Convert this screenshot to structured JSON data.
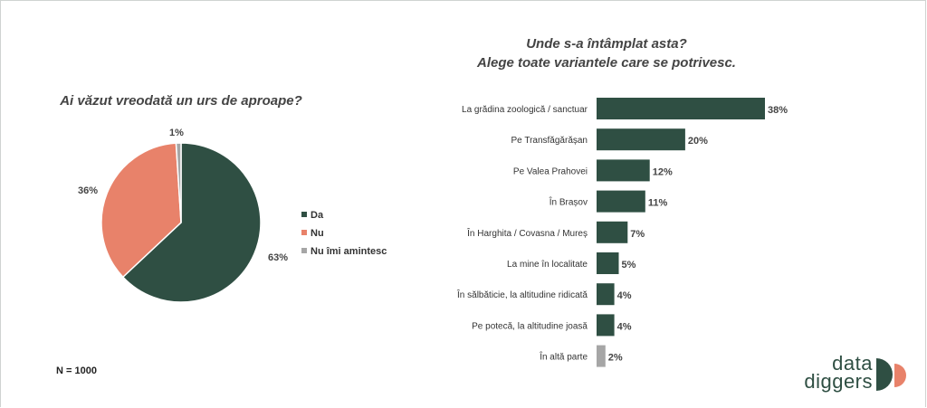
{
  "left_panel": {
    "title": "Ai văzut vreodată un urs de aproape?",
    "sample_size": "N = 1000"
  },
  "right_panel": {
    "title_line1": "Unde s-a întâmplat asta?",
    "title_line2": "Alege toate variantele care se potrivesc."
  },
  "logo": {
    "line1": "data",
    "line2": "diggers"
  },
  "colors": {
    "dark_green": "#2f4f43",
    "salmon": "#e8826a",
    "gray": "#a6a6a6",
    "logo_orange": "#e8826a"
  },
  "chart_data": [
    {
      "type": "pie",
      "title": "Ai văzut vreodată un urs de aproape?",
      "slices": [
        {
          "label": "Da",
          "value": 63,
          "value_label": "63%",
          "color": "#2f4f43"
        },
        {
          "label": "Nu",
          "value": 36,
          "value_label": "36%",
          "color": "#e8826a"
        },
        {
          "label": "Nu îmi amintesc",
          "value": 1,
          "value_label": "1%",
          "color": "#a6a6a6"
        }
      ],
      "legend_position": "right"
    },
    {
      "type": "bar",
      "orientation": "horizontal",
      "title": "Unde s-a întâmplat asta? Alege toate variantele care se potrivesc.",
      "categories": [
        "La grădina zoologică / sanctuar",
        "Pe Transfăgărășan",
        "Pe Valea Prahovei",
        "În Brașov",
        "În Harghita / Covasna / Mureș",
        "La mine în localitate",
        "În sălbăticie, la altitudine ridicată",
        "Pe potecă, la altitudine joasă",
        "În altă parte"
      ],
      "values": [
        38,
        20,
        12,
        11,
        7,
        5,
        4,
        4,
        2
      ],
      "value_labels": [
        "38%",
        "20%",
        "12%",
        "11%",
        "7%",
        "5%",
        "4%",
        "4%",
        "2%"
      ],
      "colors": [
        "#2f4f43",
        "#2f4f43",
        "#2f4f43",
        "#2f4f43",
        "#2f4f43",
        "#2f4f43",
        "#2f4f43",
        "#2f4f43",
        "#a6a6a6"
      ],
      "xlim": [
        0,
        38
      ]
    }
  ]
}
